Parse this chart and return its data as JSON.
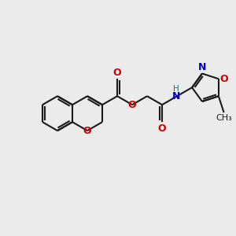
{
  "bg_color": "#ebebeb",
  "bond_color": "#1a1a1a",
  "O_color": "#cc0000",
  "N_color": "#0000cc",
  "H_color": "#008080",
  "lw": 1.5,
  "figsize": [
    3.0,
    3.0
  ],
  "dpi": 100,
  "xlim": [
    0,
    10
  ],
  "ylim": [
    1,
    9
  ]
}
